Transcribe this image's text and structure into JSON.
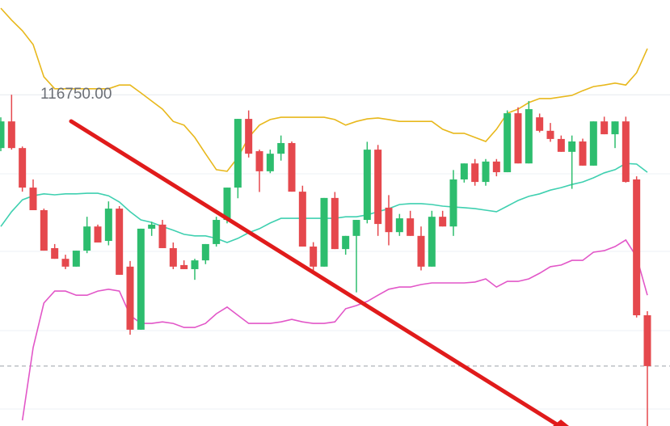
{
  "chart_data": {
    "type": "candlestick",
    "ylim": [
      115694,
      117052
    ],
    "yticks": [
      {
        "value": 116750,
        "label": "116750.00"
      }
    ],
    "grid": true,
    "up_color": "#2dbd6e",
    "down_color": "#e5484d",
    "price_line": 115885,
    "ohlc": [
      [
        116580,
        116678,
        116570,
        116665
      ],
      [
        116665,
        116750,
        116575,
        116580
      ],
      [
        116580,
        116585,
        116441,
        116454
      ],
      [
        116454,
        116480,
        116382,
        116382
      ],
      [
        116382,
        116387,
        116253,
        116253
      ],
      [
        116261,
        116274,
        116227,
        116227
      ],
      [
        116227,
        116240,
        116194,
        116202
      ],
      [
        116202,
        116253,
        116202,
        116253
      ],
      [
        116253,
        116361,
        116245,
        116330
      ],
      [
        116330,
        116336,
        116279,
        116279
      ],
      [
        116284,
        116410,
        116270,
        116387
      ],
      [
        116387,
        116395,
        116176,
        116176
      ],
      [
        116202,
        116220,
        115985,
        116001
      ],
      [
        116001,
        116323,
        116001,
        116323
      ],
      [
        116323,
        116345,
        116300,
        116336
      ],
      [
        116336,
        116351,
        116261,
        116261
      ],
      [
        116261,
        116279,
        116194,
        116202
      ],
      [
        116207,
        116222,
        116194,
        116194
      ],
      [
        116194,
        116227,
        116160,
        116222
      ],
      [
        116222,
        116274,
        116210,
        116274
      ],
      [
        116274,
        116361,
        116266,
        116351
      ],
      [
        116351,
        116454,
        116340,
        116454
      ],
      [
        116454,
        116673,
        116420,
        116673
      ],
      [
        116673,
        116700,
        116550,
        116562
      ],
      [
        116570,
        116575,
        116440,
        116506
      ],
      [
        116506,
        116575,
        116500,
        116562
      ],
      [
        116562,
        116620,
        116540,
        116596
      ],
      [
        116596,
        116601,
        116441,
        116441
      ],
      [
        116441,
        116460,
        116266,
        116266
      ],
      [
        116266,
        116280,
        116190,
        116202
      ],
      [
        116202,
        116421,
        116202,
        116421
      ],
      [
        116421,
        116440,
        116258,
        116258
      ],
      [
        116258,
        116300,
        116240,
        116300
      ],
      [
        116300,
        116351,
        116120,
        116351
      ],
      [
        116351,
        116600,
        116340,
        116575
      ],
      [
        116575,
        116590,
        116300,
        116338
      ],
      [
        116390,
        116430,
        116270,
        116312
      ],
      [
        116312,
        116370,
        116300,
        116356
      ],
      [
        116356,
        116380,
        116300,
        116300
      ],
      [
        116300,
        116330,
        116190,
        116202
      ],
      [
        116202,
        116380,
        116202,
        116361
      ],
      [
        116361,
        116380,
        116330,
        116330
      ],
      [
        116330,
        116510,
        116300,
        116480
      ],
      [
        116480,
        116531,
        116470,
        116531
      ],
      [
        116531,
        116545,
        116460,
        116472
      ],
      [
        116472,
        116545,
        116460,
        116537
      ],
      [
        116537,
        116545,
        116490,
        116503
      ],
      [
        116503,
        116700,
        116503,
        116691
      ],
      [
        116691,
        116710,
        116531,
        116531
      ],
      [
        116531,
        116730,
        116531,
        116704
      ],
      [
        116678,
        116690,
        116630,
        116635
      ],
      [
        116635,
        116660,
        116600,
        116609
      ],
      [
        116609,
        116620,
        116568,
        116568
      ],
      [
        116568,
        116620,
        116450,
        116601
      ],
      [
        116601,
        116610,
        116524,
        116524
      ],
      [
        116524,
        116665,
        116524,
        116665
      ],
      [
        116665,
        116680,
        116624,
        116624
      ],
      [
        116624,
        116665,
        116580,
        116665
      ],
      [
        116665,
        116680,
        116470,
        116472
      ],
      [
        116480,
        116490,
        116040,
        116047
      ],
      [
        116047,
        116060,
        115690,
        115885
      ]
    ],
    "series": [
      {
        "color": "#e8b81c",
        "values": [
          117026,
          116988,
          116954,
          116910,
          116807,
          116769,
          116769,
          116769,
          116769,
          116769,
          116769,
          116781,
          116781,
          116756,
          116730,
          116704,
          116665,
          116653,
          116614,
          116562,
          116511,
          116506,
          116550,
          116614,
          116653,
          116671,
          116678,
          116678,
          116678,
          116678,
          116678,
          116671,
          116653,
          116665,
          116673,
          116676,
          116671,
          116665,
          116665,
          116665,
          116665,
          116640,
          116627,
          116627,
          116614,
          116601,
          116640,
          116691,
          116704,
          116725,
          116738,
          116738,
          116743,
          116748,
          116763,
          116776,
          116781,
          116787,
          116781,
          116820,
          116897
        ]
      },
      {
        "color": "#3fd0b0",
        "values": [
          116330,
          116377,
          116415,
          116428,
          116434,
          116431,
          116434,
          116434,
          116436,
          116436,
          116428,
          116408,
          116377,
          116351,
          116343,
          116330,
          116318,
          116305,
          116300,
          116300,
          116292,
          116279,
          116292,
          116310,
          116323,
          116341,
          116356,
          116356,
          116356,
          116356,
          116356,
          116356,
          116361,
          116361,
          116367,
          116377,
          116387,
          116400,
          116403,
          116403,
          116400,
          116395,
          116392,
          116390,
          116387,
          116382,
          116377,
          116395,
          116413,
          116426,
          116434,
          116446,
          116454,
          116464,
          116472,
          116485,
          116501,
          116511,
          116531,
          116529,
          116503
        ]
      },
      {
        "color": "#e257c8",
        "values": [
          null,
          null,
          115712,
          115944,
          116086,
          116124,
          116124,
          116111,
          116111,
          116124,
          116130,
          116124,
          116047,
          116021,
          116021,
          116026,
          116021,
          116008,
          116008,
          116021,
          116052,
          116073,
          116047,
          116021,
          116021,
          116021,
          116026,
          116034,
          116026,
          116021,
          116021,
          116026,
          116068,
          116078,
          116091,
          116111,
          116130,
          116137,
          116137,
          116145,
          116150,
          116150,
          116150,
          116150,
          116153,
          116163,
          116137,
          116155,
          116155,
          116163,
          116181,
          116202,
          116207,
          116222,
          116222,
          116248,
          116253,
          116266,
          116287,
          116233,
          116111
        ]
      }
    ]
  }
}
